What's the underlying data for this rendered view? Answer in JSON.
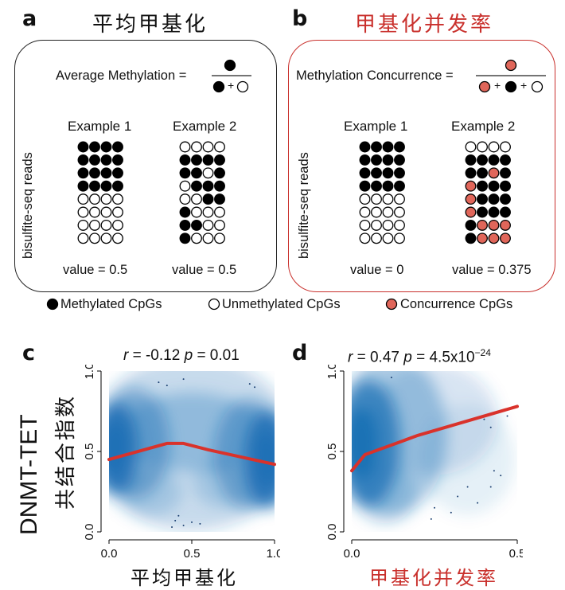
{
  "panel_a": {
    "letter": "a",
    "title": "平均甲基化",
    "formula_label": "Average Methylation =",
    "formula_plus": "+",
    "y_label": "bisulfite-seq reads",
    "example1": {
      "title": "Example 1",
      "value": "value = 0.5",
      "rows": [
        "MMMM",
        "MMMM",
        "MMMM",
        "MMMM",
        "UUUU",
        "UUUU",
        "UUUU",
        "UUUU"
      ]
    },
    "example2": {
      "title": "Example 2",
      "value": "value = 0.5",
      "rows": [
        "UUUU",
        "MMMM",
        "MMUM",
        "UMMM",
        "UUMM",
        "MUUU",
        "MMUU",
        "MUUU"
      ]
    }
  },
  "panel_b": {
    "letter": "b",
    "title": "甲基化并发率",
    "formula_label": "Methylation Concurrence =",
    "formula_plus1": "+",
    "formula_plus2": "+",
    "y_label": "bisulfite-seq reads",
    "example1": {
      "title": "Example 1",
      "value": "value = 0",
      "rows": [
        "MMMM",
        "MMMM",
        "MMMM",
        "MMMM",
        "UUUU",
        "UUUU",
        "UUUU",
        "UUUU"
      ]
    },
    "example2": {
      "title": "Example 2",
      "value": "value = 0.375",
      "rows": [
        "UUUU",
        "MMMM",
        "MMCM",
        "CMMM",
        "CMMM",
        "CMMM",
        "MCCC",
        "MCCC"
      ]
    }
  },
  "legend": {
    "methylated": "Methylated CpGs",
    "unmethylated": "Unmethylated CpGs",
    "concurrence": "Concurrence CpGs"
  },
  "colors": {
    "methylated": "#000000",
    "unmethylated": "#ffffff",
    "concurrence": "#e0665a",
    "red_title": "#c9302c",
    "trend_line": "#d9322b",
    "density": "#1b6fb5"
  },
  "panel_c": {
    "letter": "c",
    "r_label": "r",
    "r_value": "= -0.12",
    "p_label": "p",
    "p_value": "= 0.01",
    "x_title": "平均甲基化",
    "x_ticks": [
      "0.0",
      "0.5",
      "1.0"
    ],
    "y_ticks": [
      "0.0",
      "0.5",
      "1.0"
    ]
  },
  "panel_d": {
    "letter": "d",
    "r_label": "r",
    "r_value": "= 0.47",
    "p_label": "p",
    "p_value": "= 4.5x10",
    "p_exponent": "−24",
    "x_title": "甲基化并发率",
    "x_ticks": [
      "0.0",
      "0.5"
    ],
    "y_ticks": [
      "0.0",
      "0.5",
      "1.0"
    ]
  },
  "shared_y": {
    "title": "DNMT-TET",
    "subtitle": "共结合指数"
  },
  "chart_data": [
    {
      "type": "scatter",
      "panel": "c",
      "xlim": [
        0,
        1
      ],
      "ylim": [
        0,
        1
      ],
      "trend_x": [
        0.0,
        0.35,
        0.45,
        0.6,
        1.0
      ],
      "trend_y": [
        0.45,
        0.55,
        0.55,
        0.51,
        0.42
      ]
    },
    {
      "type": "scatter",
      "panel": "d",
      "xlim": [
        0,
        0.5
      ],
      "ylim": [
        0,
        1
      ],
      "trend_x": [
        0.0,
        0.04,
        0.2,
        0.5
      ],
      "trend_y": [
        0.38,
        0.48,
        0.6,
        0.78
      ]
    }
  ]
}
